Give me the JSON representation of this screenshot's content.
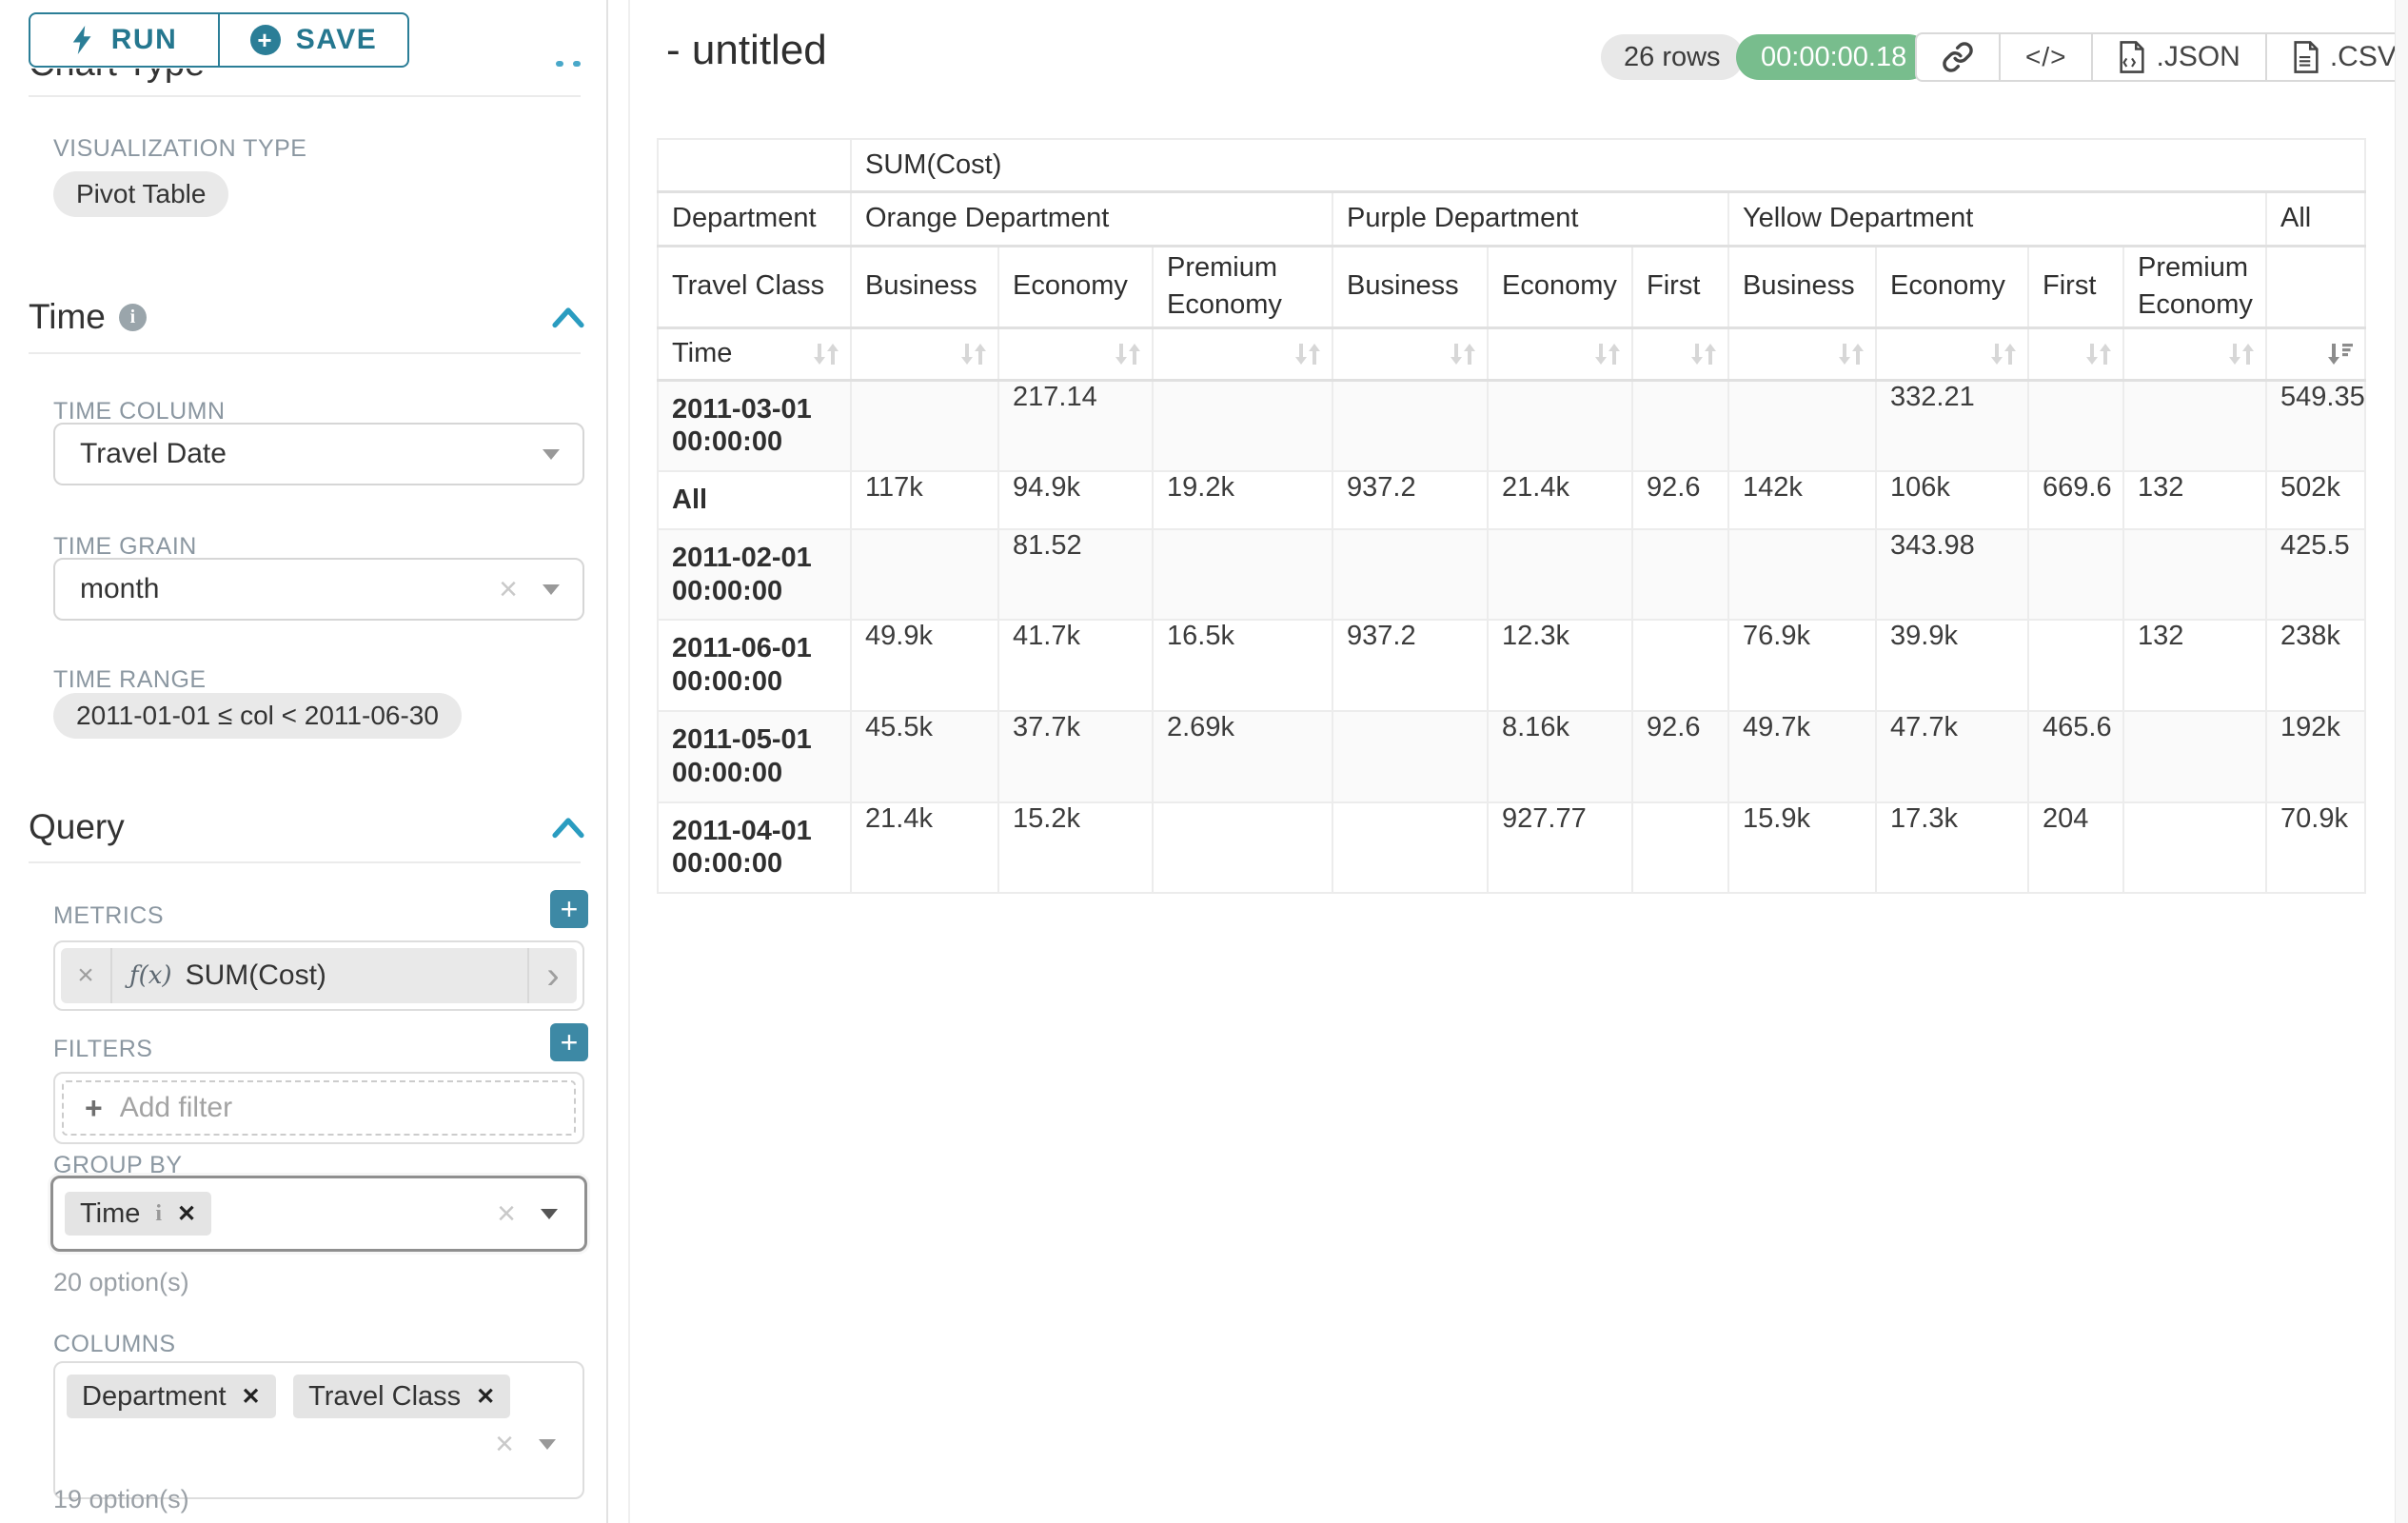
{
  "toolbar": {
    "run": "RUN",
    "save": "SAVE"
  },
  "sidebar": {
    "chart_type": {
      "title": "Chart Type",
      "viz_label": "VISUALIZATION TYPE",
      "viz_value": "Pivot Table"
    },
    "time": {
      "title": "Time",
      "column_label": "TIME COLUMN",
      "column_value": "Travel Date",
      "grain_label": "TIME GRAIN",
      "grain_value": "month",
      "range_label": "TIME RANGE",
      "range_value": "2011-01-01 ≤ col < 2011-06-30"
    },
    "query": {
      "title": "Query",
      "metrics_label": "METRICS",
      "metric": {
        "fx": "ƒ(x)",
        "name": "SUM(Cost)"
      },
      "filters_label": "FILTERS",
      "add_filter": "Add filter",
      "group_by_label": "GROUP BY",
      "group_by_chip": "Time",
      "group_by_options": "20 option(s)",
      "columns_label": "COLUMNS",
      "columns_chips": [
        "Department",
        "Travel Class"
      ],
      "columns_options": "19 option(s)"
    }
  },
  "header": {
    "title": "- untitled",
    "rows_badge": "26 rows",
    "timer": "00:00:00.18",
    "json_label": ".JSON",
    "csv_label": ".CSV"
  },
  "chart_data": {
    "type": "table",
    "metric_header": "SUM(Cost)",
    "dept_label": "Department",
    "class_label": "Travel Class",
    "time_label": "Time",
    "column_groups": [
      {
        "label": "Orange Department",
        "cols": [
          "Business",
          "Economy",
          "Premium Economy"
        ]
      },
      {
        "label": "Purple Department",
        "cols": [
          "Business",
          "Economy",
          "First"
        ]
      },
      {
        "label": "Yellow Department",
        "cols": [
          "Business",
          "Economy",
          "First",
          "Premium Economy"
        ]
      },
      {
        "label": "All",
        "cols": [
          ""
        ]
      }
    ],
    "rows": [
      {
        "label": "2011-03-01 00:00:00",
        "values": [
          "",
          "217.14",
          "",
          "",
          "",
          "",
          "",
          "332.21",
          "",
          "",
          "549.35"
        ]
      },
      {
        "label": "All",
        "values": [
          "117k",
          "94.9k",
          "19.2k",
          "937.2",
          "21.4k",
          "92.6",
          "142k",
          "106k",
          "669.6",
          "132",
          "502k"
        ]
      },
      {
        "label": "2011-02-01 00:00:00",
        "values": [
          "",
          "81.52",
          "",
          "",
          "",
          "",
          "",
          "343.98",
          "",
          "",
          "425.5"
        ]
      },
      {
        "label": "2011-06-01 00:00:00",
        "values": [
          "49.9k",
          "41.7k",
          "16.5k",
          "937.2",
          "12.3k",
          "",
          "76.9k",
          "39.9k",
          "",
          "132",
          "238k"
        ]
      },
      {
        "label": "2011-05-01 00:00:00",
        "values": [
          "45.5k",
          "37.7k",
          "2.69k",
          "",
          "8.16k",
          "92.6",
          "49.7k",
          "47.7k",
          "465.6",
          "",
          "192k"
        ]
      },
      {
        "label": "2011-04-01 00:00:00",
        "values": [
          "21.4k",
          "15.2k",
          "",
          "",
          "927.77",
          "",
          "15.9k",
          "17.3k",
          "204",
          "",
          "70.9k"
        ]
      }
    ],
    "sort": {
      "column": "All",
      "direction": "desc"
    }
  }
}
